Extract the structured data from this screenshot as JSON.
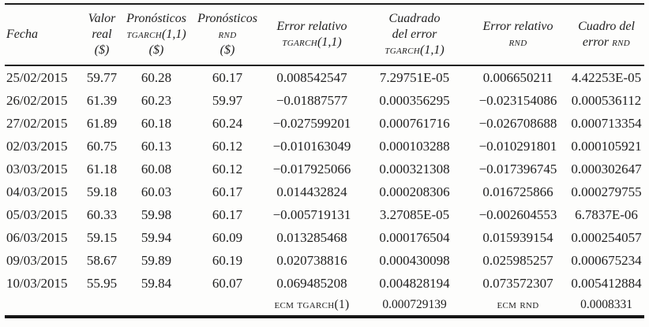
{
  "colors": {
    "text": "#1e1e1e",
    "background": "#fdfdfc",
    "rule": "#1d1d1d"
  },
  "table": {
    "columns": [
      {
        "name": "fecha",
        "header": [
          [
            {
              "text": "Fecha"
            }
          ]
        ]
      },
      {
        "name": "valor-real",
        "header": [
          [
            {
              "text": "Valor"
            }
          ],
          [
            {
              "text": "real"
            }
          ],
          [
            {
              "text": "($)"
            }
          ]
        ]
      },
      {
        "name": "pronosticos-tgarch",
        "header": [
          [
            {
              "text": "Pronósticos"
            }
          ],
          [
            {
              "text": "TGARCH",
              "sc": true
            },
            {
              "text": "(1,1)"
            }
          ],
          [
            {
              "text": "($)"
            }
          ]
        ]
      },
      {
        "name": "pronosticos-rnd",
        "header": [
          [
            {
              "text": "Pronósticos"
            }
          ],
          [
            {
              "text": "RND",
              "sc": true
            }
          ],
          [
            {
              "text": "($)"
            }
          ]
        ]
      },
      {
        "name": "error-relativo-tgarch",
        "header": [
          [
            {
              "text": "Error relativo"
            }
          ],
          [
            {
              "text": "TGARCH",
              "sc": true
            },
            {
              "text": "(1,1)"
            }
          ]
        ]
      },
      {
        "name": "cuadrado-error-tgarch",
        "header": [
          [
            {
              "text": "Cuadrado"
            }
          ],
          [
            {
              "text": "del error"
            }
          ],
          [
            {
              "text": "TGARCH",
              "sc": true
            },
            {
              "text": "(1,1)"
            }
          ]
        ]
      },
      {
        "name": "error-relativo-rnd",
        "header": [
          [
            {
              "text": "Error relativo"
            }
          ],
          [
            {
              "text": "RND",
              "sc": true
            }
          ]
        ]
      },
      {
        "name": "cuadro-error-rnd",
        "header": [
          [
            {
              "text": "Cuadro del"
            }
          ],
          [
            {
              "text": "error "
            },
            {
              "text": "RND",
              "sc": true
            }
          ]
        ]
      }
    ],
    "rows": [
      [
        "25/02/2015",
        "59.77",
        "60.28",
        "60.17",
        "0.008542547",
        "7.29751E-05",
        "0.006650211",
        "4.42253E-05"
      ],
      [
        "26/02/2015",
        "61.39",
        "60.23",
        "59.97",
        "−0.01887577",
        "0.000356295",
        "−0.023154086",
        "0.000536112"
      ],
      [
        "27/02/2015",
        "61.89",
        "60.18",
        "60.24",
        "−0.027599201",
        "0.000761716",
        "−0.026708688",
        "0.000713354"
      ],
      [
        "02/03/2015",
        "60.75",
        "60.13",
        "60.12",
        "−0.010163049",
        "0.000103288",
        "−0.010291801",
        "0.000105921"
      ],
      [
        "03/03/2015",
        "61.18",
        "60.08",
        "60.12",
        "−0.017925066",
        "0.000321308",
        "−0.017396745",
        "0.000302647"
      ],
      [
        "04/03/2015",
        "59.18",
        "60.03",
        "60.17",
        "0.014432824",
        "0.000208306",
        "0.016725866",
        "0.000279755"
      ],
      [
        "05/03/2015",
        "60.33",
        "59.98",
        "60.17",
        "−0.005719131",
        "3.27085E-05",
        "−0.002604553",
        "6.7837E-06"
      ],
      [
        "06/03/2015",
        "59.15",
        "59.94",
        "60.09",
        "0.013285468",
        "0.000176504",
        "0.015939154",
        "0.000254057"
      ],
      [
        "09/03/2015",
        "58.67",
        "59.89",
        "60.19",
        "0.020738816",
        "0.000430098",
        "0.025985257",
        "0.000675234"
      ],
      [
        "10/03/2015",
        "55.95",
        "59.84",
        "60.07",
        "0.069485208",
        "0.004828194",
        "0.073572307",
        "0.005412884"
      ]
    ],
    "footer": {
      "ecm_tgarch_label": "ECM TGARCH(1)",
      "ecm_tgarch_value": "0.000729139",
      "ecm_rnd_label": "ECM RND",
      "ecm_rnd_value": "0.0008331"
    }
  }
}
